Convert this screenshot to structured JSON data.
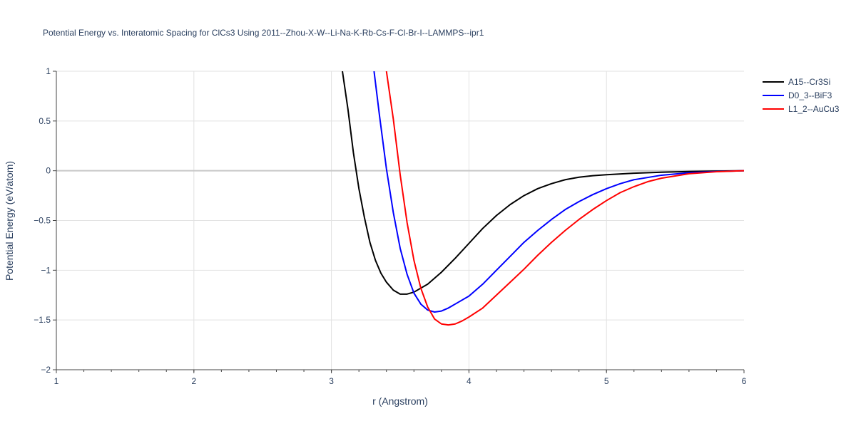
{
  "chart_data": {
    "type": "line",
    "title": "Potential Energy vs. Interatomic Spacing for ClCs3 Using 2011--Zhou-X-W--Li-Na-K-Rb-Cs-F-Cl-Br-I--LAMMPS--ipr1",
    "xlabel": "r (Angstrom)",
    "ylabel": "Potential Energy (eV/atom)",
    "xlim": [
      1,
      6
    ],
    "ylim": [
      -2,
      1
    ],
    "xticks": [
      1,
      2,
      3,
      4,
      5,
      6
    ],
    "xtick_labels": [
      "1",
      "2",
      "3",
      "4",
      "5",
      "6"
    ],
    "yticks": [
      -2,
      -1.5,
      -1,
      -0.5,
      0,
      0.5,
      1
    ],
    "ytick_labels": [
      "−2",
      "−1.5",
      "−1",
      "−0.5",
      "0",
      "0.5",
      "1"
    ],
    "grid": true,
    "legend_position": "top-right",
    "series": [
      {
        "name": "A15--Cr3Si",
        "color": "#000000",
        "x": [
          3.08,
          3.12,
          3.16,
          3.2,
          3.24,
          3.28,
          3.32,
          3.36,
          3.4,
          3.45,
          3.5,
          3.55,
          3.6,
          3.7,
          3.8,
          3.9,
          4.0,
          4.1,
          4.2,
          4.3,
          4.4,
          4.5,
          4.6,
          4.7,
          4.8,
          4.9,
          5.0,
          5.2,
          5.4,
          5.6,
          5.8,
          6.0
        ],
        "y": [
          1.0,
          0.62,
          0.18,
          -0.18,
          -0.47,
          -0.72,
          -0.9,
          -1.03,
          -1.12,
          -1.2,
          -1.24,
          -1.24,
          -1.22,
          -1.14,
          -1.02,
          -0.88,
          -0.73,
          -0.58,
          -0.45,
          -0.34,
          -0.25,
          -0.18,
          -0.13,
          -0.09,
          -0.065,
          -0.05,
          -0.04,
          -0.025,
          -0.015,
          -0.008,
          -0.003,
          0.0
        ]
      },
      {
        "name": "D0_3--BiF3",
        "color": "#0000ff",
        "x": [
          3.31,
          3.35,
          3.4,
          3.45,
          3.5,
          3.55,
          3.6,
          3.65,
          3.7,
          3.75,
          3.8,
          3.85,
          3.9,
          4.0,
          4.1,
          4.2,
          4.3,
          4.4,
          4.5,
          4.6,
          4.7,
          4.8,
          4.9,
          5.0,
          5.1,
          5.2,
          5.4,
          5.6,
          5.8,
          6.0
        ],
        "y": [
          1.0,
          0.55,
          0.02,
          -0.42,
          -0.78,
          -1.04,
          -1.23,
          -1.34,
          -1.4,
          -1.42,
          -1.41,
          -1.38,
          -1.34,
          -1.26,
          -1.14,
          -1.0,
          -0.86,
          -0.72,
          -0.6,
          -0.49,
          -0.39,
          -0.31,
          -0.24,
          -0.18,
          -0.13,
          -0.09,
          -0.045,
          -0.02,
          -0.008,
          0.0
        ]
      },
      {
        "name": "L1_2--AuCu3",
        "color": "#ff0000",
        "x": [
          3.4,
          3.45,
          3.5,
          3.55,
          3.6,
          3.65,
          3.7,
          3.75,
          3.8,
          3.85,
          3.9,
          3.95,
          4.0,
          4.1,
          4.2,
          4.3,
          4.4,
          4.5,
          4.6,
          4.7,
          4.8,
          4.9,
          5.0,
          5.1,
          5.2,
          5.3,
          5.4,
          5.6,
          5.8,
          6.0
        ],
        "y": [
          1.0,
          0.52,
          -0.04,
          -0.52,
          -0.9,
          -1.18,
          -1.37,
          -1.49,
          -1.54,
          -1.55,
          -1.54,
          -1.51,
          -1.47,
          -1.38,
          -1.25,
          -1.12,
          -0.99,
          -0.85,
          -0.72,
          -0.6,
          -0.49,
          -0.39,
          -0.3,
          -0.22,
          -0.16,
          -0.11,
          -0.075,
          -0.03,
          -0.01,
          0.0
        ]
      }
    ]
  }
}
